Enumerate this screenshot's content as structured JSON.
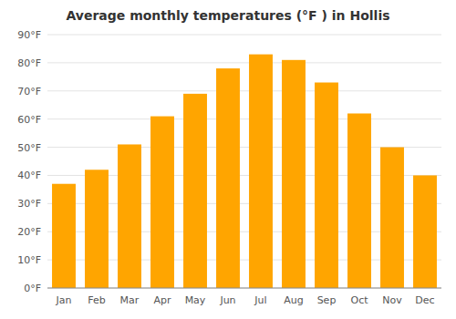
{
  "chart_data": {
    "type": "bar",
    "title": "Average monthly temperatures (°F ) in Hollis",
    "categories": [
      "Jan",
      "Feb",
      "Mar",
      "Apr",
      "May",
      "Jun",
      "Jul",
      "Aug",
      "Sep",
      "Oct",
      "Nov",
      "Dec"
    ],
    "values": [
      37,
      42,
      51,
      61,
      69,
      78,
      83,
      81,
      73,
      62,
      50,
      40
    ],
    "color": "#FFA500",
    "ylim": [
      0,
      90
    ],
    "yticks": [
      {
        "value": 0,
        "label": "0°F"
      },
      {
        "value": 10,
        "label": "10°F"
      },
      {
        "value": 20,
        "label": "20°F"
      },
      {
        "value": 30,
        "label": "30°F"
      },
      {
        "value": 40,
        "label": "40°F"
      },
      {
        "value": 50,
        "label": "50°F"
      },
      {
        "value": 60,
        "label": "60°F"
      },
      {
        "value": 70,
        "label": "70°F"
      },
      {
        "value": 80,
        "label": "80°F"
      },
      {
        "value": 90,
        "label": "90°F"
      }
    ],
    "grid": true
  }
}
